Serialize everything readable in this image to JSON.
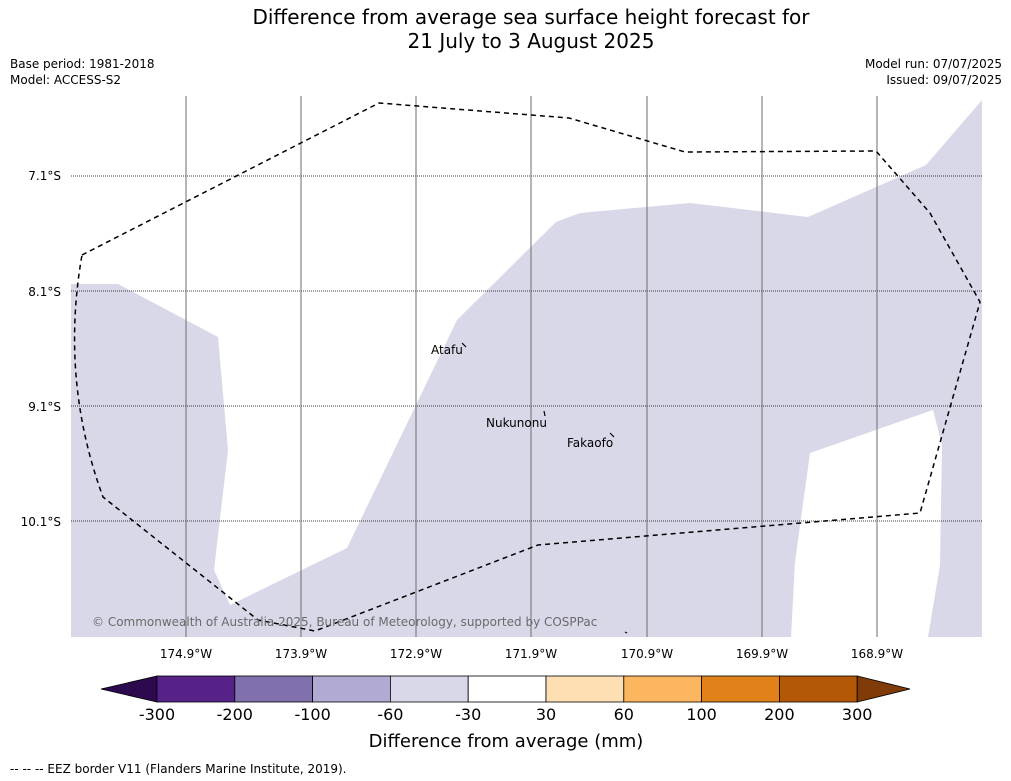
{
  "title": {
    "line1": "Difference from average sea surface height forecast for",
    "line2": "21 July to 3 August 2025"
  },
  "meta": {
    "base_period": "Base period: 1981-2018",
    "model": "Model: ACCESS-S2",
    "model_run": "Model run: 07/07/2025",
    "issued": "Issued: 09/07/2025"
  },
  "map": {
    "lat_labels": [
      "7.1°S",
      "8.1°S",
      "9.1°S",
      "10.1°S"
    ],
    "lon_labels": [
      "174.9°W",
      "173.9°W",
      "172.9°W",
      "171.9°W",
      "170.9°W",
      "169.9°W",
      "168.9°W"
    ],
    "places": [
      "Atafu",
      "Nukunonu",
      "Fakaofo"
    ],
    "copyright": "© Commonwealth of Australia 2025, Bureau of Meteorology, supported by COSPPac",
    "anomaly_color": "#d8d8e9"
  },
  "colorbar": {
    "label": "Difference from average (mm)",
    "ticks": [
      "-300",
      "-200",
      "-100",
      "-60",
      "-30",
      "30",
      "60",
      "100",
      "200",
      "300"
    ],
    "colors": [
      "#2d0a4e",
      "#562288",
      "#8071ae",
      "#b1aad3",
      "#d8d8e9",
      "#ffffff",
      "#fedfb4",
      "#fcb660",
      "#e0811a",
      "#b35806",
      "#7f3b08"
    ]
  },
  "footer": {
    "legend": "--  --  -- EEZ border V11 (Flanders Marine Institute, 2019)."
  }
}
